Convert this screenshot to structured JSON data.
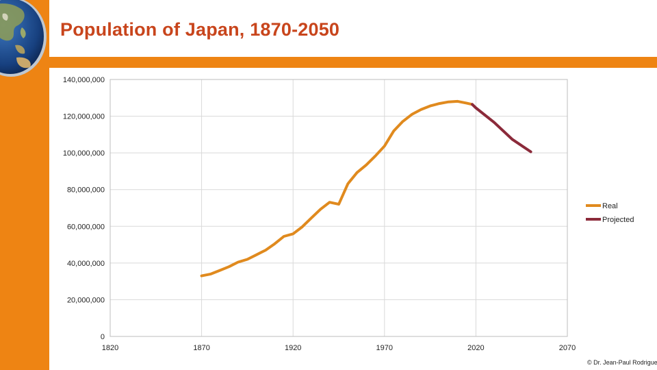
{
  "slide": {
    "title": "Population of Japan, 1870-2050",
    "credit": "© Dr. Jean-Paul Rodrigue"
  },
  "colors": {
    "accent": "#ee8413",
    "title": "#c8451c",
    "real_series": "#e08a1e",
    "projected_series": "#8b2a3a",
    "grid": "#d9d9d9"
  },
  "chart_data": {
    "type": "line",
    "title": "",
    "xlabel": "",
    "ylabel": "",
    "xlim": [
      1820,
      2070
    ],
    "ylim": [
      0,
      140000000
    ],
    "x_ticks": [
      1820,
      1870,
      1920,
      1970,
      2020,
      2070
    ],
    "y_ticks": [
      0,
      20000000,
      40000000,
      60000000,
      80000000,
      100000000,
      120000000,
      140000000
    ],
    "y_tick_labels": [
      "0",
      "20,000,000",
      "40,000,000",
      "60,000,000",
      "80,000,000",
      "100,000,000",
      "120,000,000",
      "140,000,000"
    ],
    "grid": true,
    "legend_position": "right",
    "series": [
      {
        "name": "Real",
        "x": [
          1870,
          1875,
          1880,
          1885,
          1890,
          1895,
          1900,
          1905,
          1910,
          1915,
          1920,
          1925,
          1930,
          1935,
          1940,
          1945,
          1950,
          1955,
          1960,
          1965,
          1970,
          1975,
          1980,
          1985,
          1990,
          1995,
          2000,
          2005,
          2010,
          2015,
          2018
        ],
        "values": [
          33000000,
          34000000,
          36000000,
          38000000,
          40500000,
          42000000,
          44500000,
          47000000,
          50500000,
          54500000,
          55900000,
          59700000,
          64500000,
          69300000,
          73100000,
          72000000,
          83200000,
          89300000,
          93400000,
          98300000,
          103700000,
          111900000,
          117100000,
          121000000,
          123600000,
          125600000,
          126900000,
          127800000,
          128100000,
          127100000,
          126400000
        ]
      },
      {
        "name": "Projected",
        "x": [
          2018,
          2020,
          2030,
          2040,
          2050
        ],
        "values": [
          126400000,
          124500000,
          116600000,
          107300000,
          100600000
        ]
      }
    ]
  }
}
